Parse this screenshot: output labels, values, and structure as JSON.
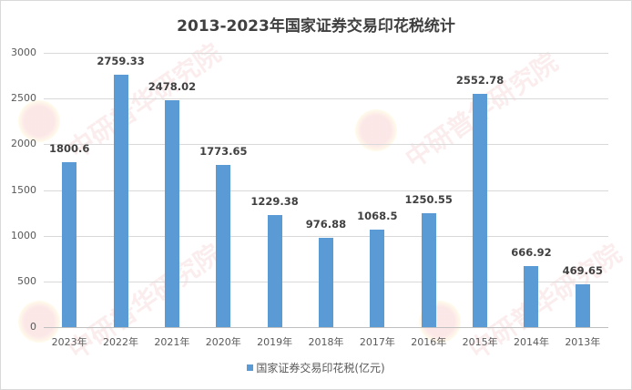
{
  "chart_data": {
    "type": "bar",
    "title": "2013-2023年国家证券交易印花税统计",
    "xlabel": "",
    "ylabel": "",
    "ylim": [
      0,
      3000
    ],
    "yticks": [
      0,
      500,
      1000,
      1500,
      2000,
      2500,
      3000
    ],
    "grid": true,
    "legend_position": "bottom",
    "categories": [
      "2023年",
      "2022年",
      "2021年",
      "2020年",
      "2019年",
      "2018年",
      "2017年",
      "2016年",
      "2015年",
      "2014年",
      "2013年"
    ],
    "series": [
      {
        "name": "国家证券交易印花税(亿元)",
        "color": "#5b9bd5",
        "values": [
          1800.6,
          2759.33,
          2478.02,
          1773.65,
          1229.38,
          976.88,
          1068.5,
          1250.55,
          2552.78,
          666.92,
          469.65
        ],
        "labels": [
          "1800.6",
          "2759.33",
          "2478.02",
          "1773.65",
          "1229.38",
          "976.88",
          "1068.5",
          "1250.55",
          "2552.78",
          "666.92",
          "469.65"
        ]
      }
    ]
  },
  "watermark": {
    "text_en": "www.chinaIRN.com",
    "text_cn": "中研普华研究院",
    "logo": "CIRN"
  },
  "legend": {
    "label": "国家证券交易印花税(亿元)"
  }
}
